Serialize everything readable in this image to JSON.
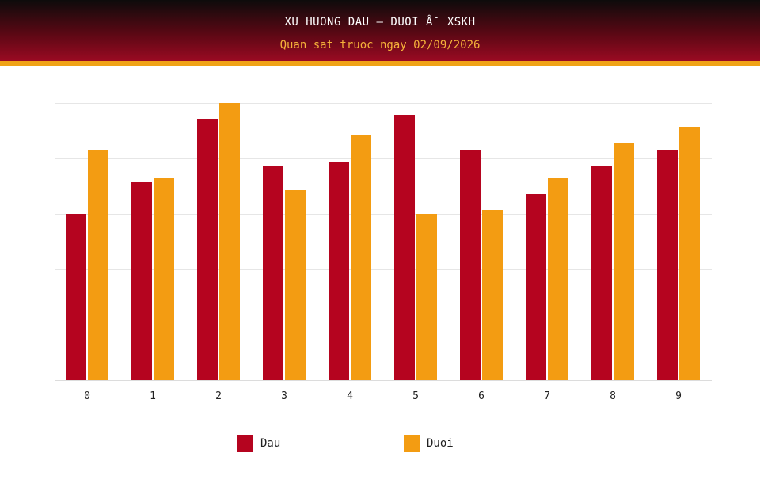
{
  "header": {
    "title": "XU HUONG DAU – DUOI Â˘ XSKH",
    "subtitle": "Quan sat truoc ngay 02/09/2026"
  },
  "colors": {
    "header_dark": "#0d0b0b",
    "header_red": "#9a0a22",
    "accent_gold": "#f0a316",
    "dau": "#b5041f",
    "duoi": "#f39c12",
    "gridline": "#e6e6e6"
  },
  "chart_data": {
    "type": "bar",
    "categories": [
      "0",
      "1",
      "2",
      "3",
      "4",
      "5",
      "6",
      "7",
      "8",
      "9"
    ],
    "series": [
      {
        "name": "Dau",
        "values": [
          21,
          25,
          33,
          27,
          27.5,
          33.5,
          29,
          23.5,
          27,
          29
        ]
      },
      {
        "name": "Duoi",
        "values": [
          29,
          25.5,
          35,
          24,
          31,
          21,
          21.5,
          25.5,
          30,
          32
        ]
      }
    ],
    "ylim": [
      0,
      35
    ],
    "grid": true,
    "show_y_ticks": false,
    "legend_position": "bottom"
  },
  "legend": {
    "items": [
      {
        "label": "Dau",
        "color": "#b5041f"
      },
      {
        "label": "Duoi",
        "color": "#f39c12"
      }
    ]
  }
}
